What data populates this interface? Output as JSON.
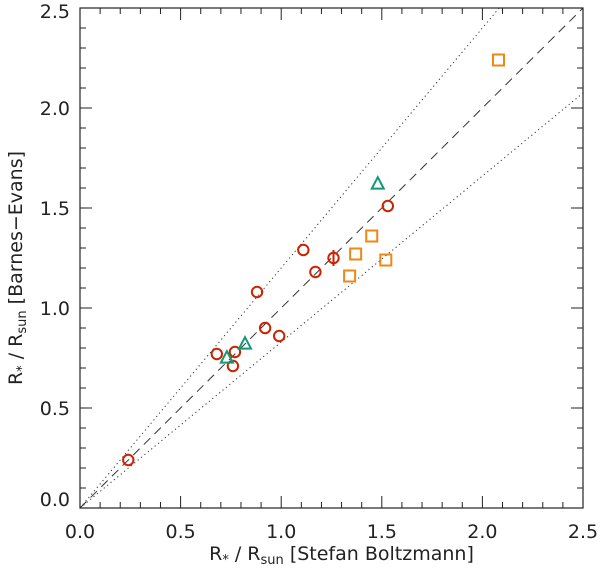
{
  "chart_data": {
    "type": "scatter",
    "title": "",
    "xlabel": {
      "main": "R",
      "star": "*",
      "mid": " / R",
      "sub": "sun",
      "tail": " [Stefan Boltzmann]"
    },
    "ylabel": {
      "main": "R",
      "star": "*",
      "mid": " / R",
      "sub": "sun",
      "tail": " [Barnes−Evans]"
    },
    "xlim": [
      0.0,
      2.5
    ],
    "ylim": [
      0.0,
      2.5
    ],
    "xticks": [
      "0.0",
      "0.5",
      "1.0",
      "1.5",
      "2.0",
      "2.5"
    ],
    "yticks": [
      "0.0",
      "0.5",
      "1.0",
      "1.5",
      "2.0",
      "2.5"
    ],
    "xtick_values": [
      0.0,
      0.5,
      1.0,
      1.5,
      2.0,
      2.5
    ],
    "ytick_values": [
      0.0,
      0.5,
      1.0,
      1.5,
      2.0,
      2.5
    ],
    "reference_lines": [
      {
        "name": "one-to-one",
        "style": "dashed",
        "slope": 1.0
      },
      {
        "name": "upper-bound",
        "style": "dotted",
        "slope": 1.2
      },
      {
        "name": "lower-bound",
        "style": "dotted",
        "slope": 0.83
      }
    ],
    "series": [
      {
        "name": "circles",
        "marker": "circle",
        "color": "#cc2200",
        "points": [
          {
            "x": 0.24,
            "y": 0.24
          },
          {
            "x": 0.68,
            "y": 0.77
          },
          {
            "x": 0.76,
            "y": 0.71
          },
          {
            "x": 0.77,
            "y": 0.78
          },
          {
            "x": 0.88,
            "y": 1.08
          },
          {
            "x": 0.92,
            "y": 0.9
          },
          {
            "x": 0.99,
            "y": 0.86
          },
          {
            "x": 1.11,
            "y": 1.29
          },
          {
            "x": 1.17,
            "y": 1.18
          },
          {
            "x": 1.26,
            "y": 1.25,
            "yerr": 0.04
          },
          {
            "x": 1.53,
            "y": 1.51
          }
        ]
      },
      {
        "name": "squares",
        "marker": "square",
        "color": "#ee8811",
        "points": [
          {
            "x": 1.34,
            "y": 1.16
          },
          {
            "x": 1.37,
            "y": 1.27
          },
          {
            "x": 1.45,
            "y": 1.36
          },
          {
            "x": 1.52,
            "y": 1.24
          },
          {
            "x": 2.08,
            "y": 2.24
          }
        ]
      },
      {
        "name": "triangles",
        "marker": "triangle",
        "color": "#119977",
        "points": [
          {
            "x": 0.73,
            "y": 0.75
          },
          {
            "x": 0.82,
            "y": 0.82
          },
          {
            "x": 1.48,
            "y": 1.62
          }
        ]
      }
    ]
  }
}
